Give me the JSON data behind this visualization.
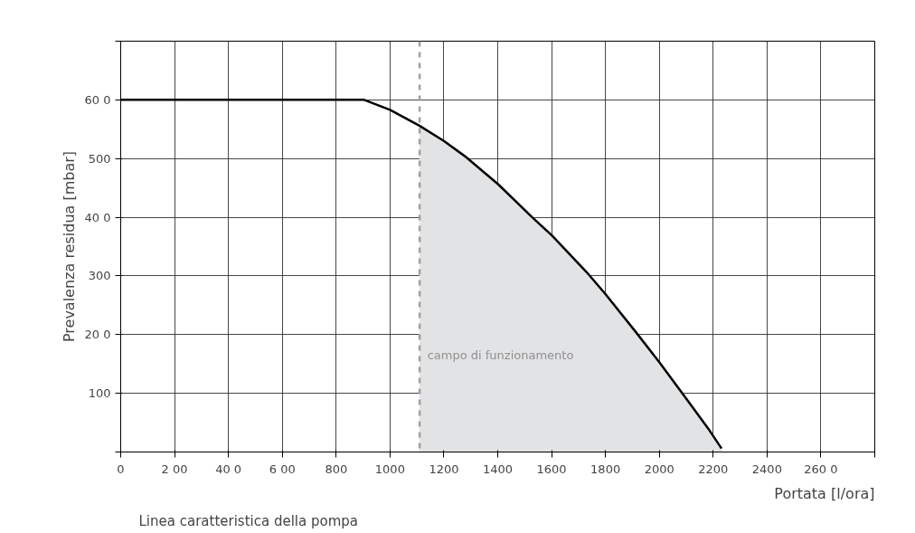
{
  "chart_data": {
    "type": "line",
    "xlabel": "Portata [l/ora]",
    "ylabel": "Prevalenza residua [mbar]",
    "xlim": [
      0,
      2800
    ],
    "ylim": [
      0,
      700
    ],
    "xticks": [
      0,
      {
        "value": 200,
        "label": "2 00"
      },
      {
        "value": 400,
        "label": "40 0"
      },
      {
        "value": 600,
        "label": "6 00"
      },
      800,
      1000,
      1200,
      1400,
      1600,
      1800,
      2000,
      2200,
      2400,
      {
        "value": 2600,
        "label": "260 0"
      },
      {
        "value": 2800,
        "label": null
      }
    ],
    "yticks": [
      {
        "value": 0,
        "label": null
      },
      100,
      {
        "value": 200,
        "label": "20 0"
      },
      300,
      {
        "value": 400,
        "label": "40 0"
      },
      500,
      {
        "value": 600,
        "label": "60 0"
      },
      {
        "value": 700,
        "label": null
      }
    ],
    "grid": true,
    "marker": "none",
    "line_style": "solid",
    "series": [
      {
        "type": "area",
        "color": "#e2e3e5",
        "x": [
          1109,
          1200,
          1281,
          1402,
          1528,
          1601,
          1731,
          1800,
          1910,
          2000,
          2090,
          2180,
          2231
        ],
        "values": [
          556,
          530,
          503,
          456,
          400,
          369,
          306,
          269,
          206,
          153,
          97,
          41,
          6
        ]
      },
      {
        "color": "#000000",
        "x": [
          0,
          904,
          1000,
          1109,
          1200,
          1281,
          1402,
          1528,
          1601,
          1731,
          1800,
          1910,
          2000,
          2090,
          2180,
          2231
        ],
        "values": [
          600,
          600,
          583,
          556,
          530,
          503,
          456,
          400,
          369,
          306,
          269,
          206,
          153,
          97,
          41,
          6
        ]
      }
    ],
    "ref_lines": [
      {
        "axis": "x",
        "value": 1110,
        "color": "#a0a0a0",
        "line_style": "dashed"
      }
    ],
    "annotations": [
      "campo di funzionamento",
      "Linea caratteristica della pompa"
    ]
  }
}
